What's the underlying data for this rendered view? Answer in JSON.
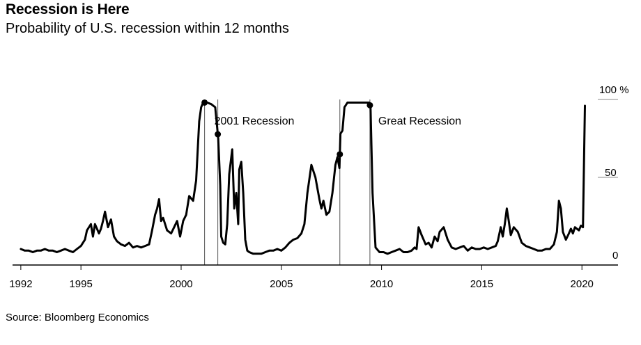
{
  "header": {
    "title": "Recession is Here",
    "subtitle": "Probability of U.S. recession within 12 months"
  },
  "footer": {
    "source": "Source: Bloomberg Economics"
  },
  "colors": {
    "line": "#000000",
    "recession_line": "#555555",
    "axis": "#000000",
    "gridline": "#888888"
  },
  "chart_data": {
    "type": "line",
    "title": "Recession is Here",
    "subtitle": "Probability of U.S. recession within 12 months",
    "xlabel": "",
    "ylabel": "",
    "xlim": [
      1991.9,
      2021.8
    ],
    "ylim": [
      0,
      100
    ],
    "y_axis_side": "right",
    "grid": false,
    "x_ticks": [
      1992,
      1995,
      2000,
      2005,
      2010,
      2015,
      2020
    ],
    "x_tick_labels": [
      "1992",
      "1995",
      "2000",
      "2005",
      "2010",
      "2015",
      "2020"
    ],
    "y_ticks": [
      0,
      50,
      100
    ],
    "y_tick_labels": [
      "0",
      "50",
      "100 %"
    ],
    "annotations": [
      {
        "label": "2001 Recession",
        "start": 2001.17,
        "end": 2001.83
      },
      {
        "label": "Great Recession",
        "start": 2007.92,
        "end": 2009.42
      }
    ],
    "series": [
      {
        "x": [
          1992.0,
          1992.2,
          1992.4,
          1992.6,
          1992.8,
          1993.0,
          1993.2,
          1993.4,
          1993.6,
          1993.8,
          1994.0,
          1994.2,
          1994.4,
          1994.6,
          1994.8,
          1995.0,
          1995.2,
          1995.3,
          1995.5,
          1995.6,
          1995.7,
          1995.9,
          1996.0,
          1996.1,
          1996.2,
          1996.35,
          1996.5,
          1996.65,
          1996.8,
          1997.0,
          1997.2,
          1997.4,
          1997.6,
          1997.8,
          1998.0,
          1998.2,
          1998.4,
          1998.55,
          1998.7,
          1998.8,
          1998.9,
          1999.0,
          1999.1,
          1999.3,
          1999.5,
          1999.65,
          1999.8,
          1999.95,
          2000.1,
          2000.25,
          2000.4,
          2000.6,
          2000.75,
          2000.9,
          2001.0,
          2001.1,
          2001.3,
          2001.5,
          2001.7,
          2001.85,
          2001.95,
          2002.0,
          2002.1,
          2002.2,
          2002.3,
          2002.4,
          2002.55,
          2002.65,
          2002.75,
          2002.85,
          2002.9,
          2003.0,
          2003.1,
          2003.2,
          2003.3,
          2003.4,
          2003.6,
          2003.8,
          2004.0,
          2004.2,
          2004.4,
          2004.6,
          2004.8,
          2005.0,
          2005.2,
          2005.4,
          2005.6,
          2005.8,
          2006.0,
          2006.15,
          2006.3,
          2006.5,
          2006.7,
          2006.9,
          2007.0,
          2007.1,
          2007.25,
          2007.4,
          2007.55,
          2007.7,
          2007.8,
          2007.9,
          2007.95,
          2008.05,
          2008.15,
          2008.3,
          2008.5,
          2008.7,
          2008.9,
          2009.1,
          2009.3,
          2009.38,
          2009.45,
          2009.55,
          2009.7,
          2009.9,
          2010.1,
          2010.3,
          2010.5,
          2010.7,
          2010.9,
          2011.1,
          2011.3,
          2011.5,
          2011.65,
          2011.75,
          2011.85,
          2012.0,
          2012.2,
          2012.35,
          2012.5,
          2012.65,
          2012.8,
          2012.9,
          2013.1,
          2013.3,
          2013.5,
          2013.7,
          2013.9,
          2014.1,
          2014.3,
          2014.5,
          2014.7,
          2014.9,
          2015.1,
          2015.3,
          2015.5,
          2015.7,
          2015.8,
          2015.95,
          2016.05,
          2016.15,
          2016.25,
          2016.35,
          2016.45,
          2016.6,
          2016.8,
          2017.0,
          2017.2,
          2017.4,
          2017.6,
          2017.8,
          2018.0,
          2018.2,
          2018.4,
          2018.6,
          2018.75,
          2018.85,
          2018.95,
          2019.05,
          2019.2,
          2019.35,
          2019.45,
          2019.55,
          2019.65,
          2019.75,
          2019.85,
          2019.95,
          2020.05,
          2020.15
        ],
        "y": [
          4,
          3,
          3,
          2,
          3,
          3,
          4,
          3,
          3,
          2,
          3,
          4,
          3,
          2,
          4,
          6,
          10,
          16,
          20,
          12,
          20,
          14,
          17,
          22,
          28,
          18,
          23,
          12,
          9,
          7,
          6,
          8,
          5,
          6,
          5,
          6,
          7,
          16,
          26,
          30,
          36,
          22,
          24,
          16,
          14,
          18,
          22,
          12,
          22,
          26,
          38,
          35,
          48,
          86,
          95,
          98,
          98,
          97,
          95,
          75,
          45,
          12,
          8,
          7,
          20,
          52,
          68,
          30,
          40,
          20,
          55,
          60,
          40,
          10,
          3,
          2,
          1,
          1,
          1,
          2,
          3,
          3,
          4,
          3,
          5,
          8,
          10,
          11,
          14,
          20,
          40,
          58,
          50,
          36,
          30,
          35,
          26,
          28,
          40,
          58,
          63,
          56,
          78,
          80,
          95,
          98,
          98,
          98,
          98,
          98,
          98,
          98,
          95,
          40,
          5,
          2,
          2,
          1,
          2,
          3,
          4,
          2,
          2,
          3,
          5,
          4,
          18,
          13,
          7,
          8,
          5,
          12,
          9,
          15,
          18,
          10,
          5,
          4,
          5,
          6,
          3,
          5,
          4,
          4,
          5,
          4,
          5,
          6,
          9,
          18,
          12,
          20,
          30,
          22,
          13,
          18,
          15,
          8,
          6,
          5,
          4,
          3,
          3,
          4,
          4,
          7,
          15,
          35,
          30,
          15,
          10,
          14,
          17,
          14,
          18,
          17,
          16,
          19,
          18,
          96
        ]
      }
    ]
  }
}
